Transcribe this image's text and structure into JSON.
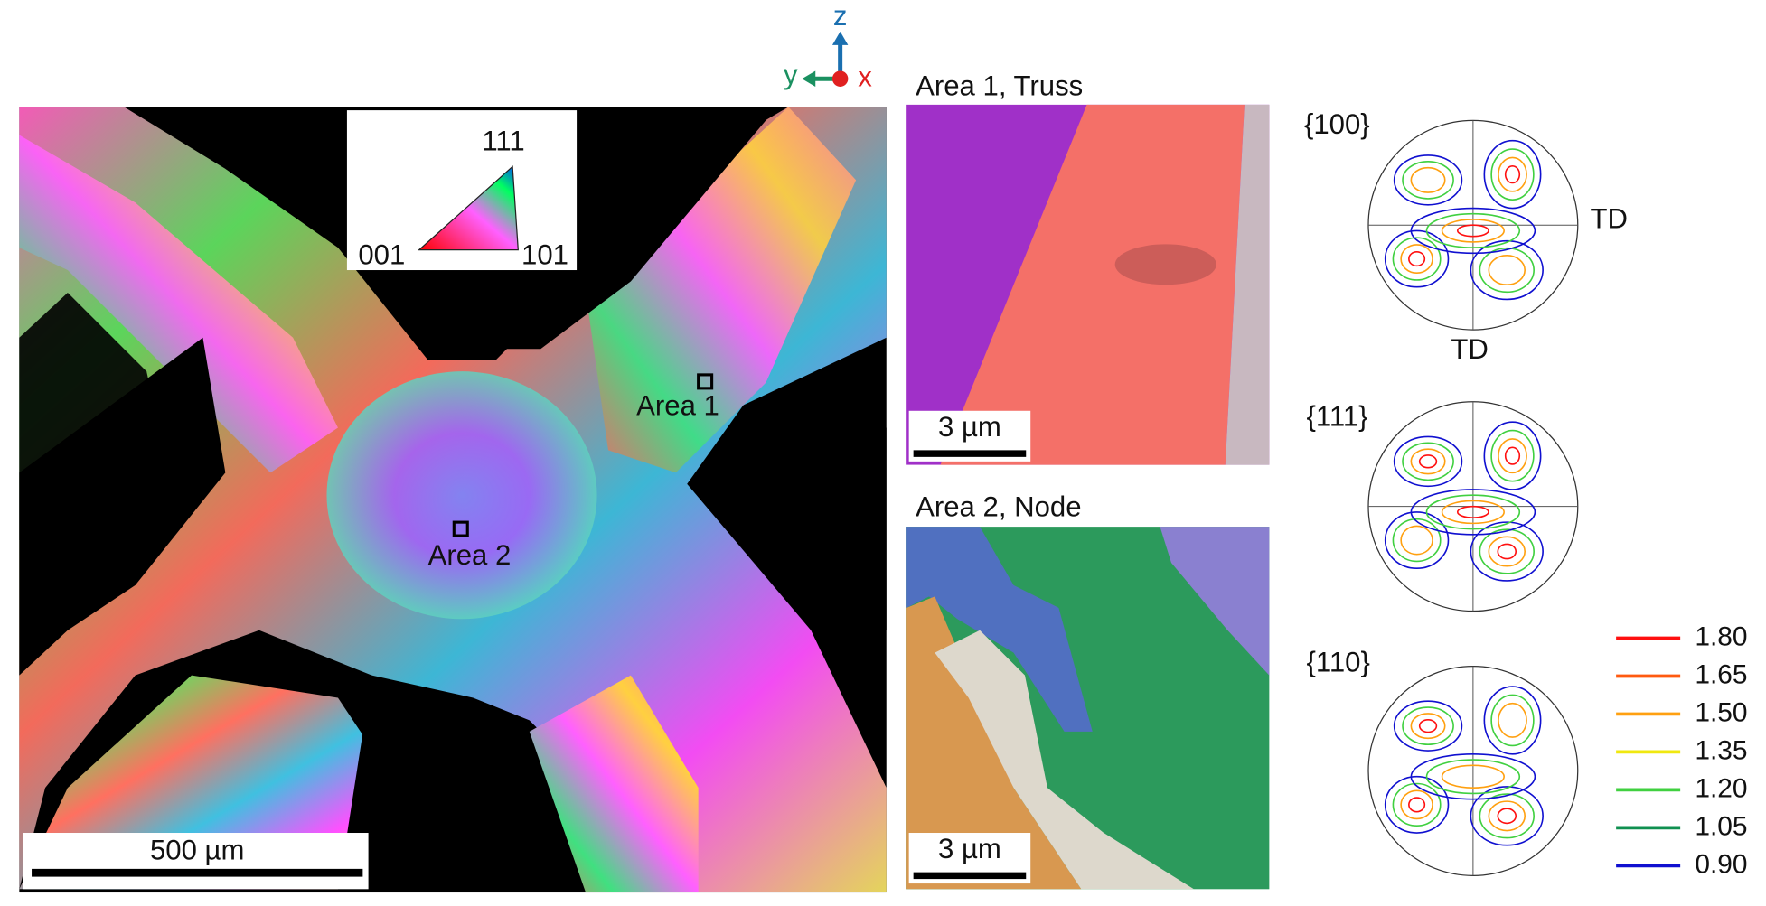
{
  "axes_triad": {
    "z": "z",
    "y": "y",
    "x": "x"
  },
  "ipf_legend": {
    "top": "111",
    "left": "001",
    "right": "101"
  },
  "map": {
    "scale_bar": "500 µm",
    "areas": [
      "Area 1",
      "Area 2"
    ]
  },
  "panels": [
    {
      "title": "Area 1, Truss",
      "scale_bar": "3 µm"
    },
    {
      "title": "Area 2, Node",
      "scale_bar": "3 µm"
    }
  ],
  "pole_figures": [
    {
      "label": "{100}",
      "axis_labels": [
        "TD",
        "TD"
      ]
    },
    {
      "label": "{111}"
    },
    {
      "label": "{110}"
    }
  ],
  "contour_legend": [
    {
      "label": "1.80",
      "color": "#ff1010"
    },
    {
      "label": "1.65",
      "color": "#ff5a10"
    },
    {
      "label": "1.50",
      "color": "#ffa010"
    },
    {
      "label": "1.35",
      "color": "#f0e810"
    },
    {
      "label": "1.20",
      "color": "#40d040"
    },
    {
      "label": "1.05",
      "color": "#109050"
    },
    {
      "label": "0.90",
      "color": "#1010d0"
    }
  ]
}
